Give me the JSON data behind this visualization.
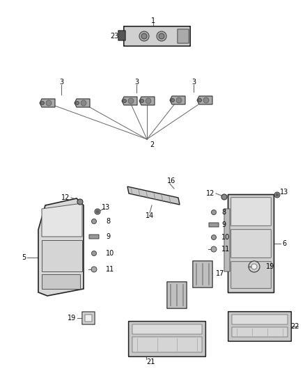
{
  "bg_color": "#ffffff",
  "fig_width": 4.38,
  "fig_height": 5.33,
  "dpi": 100,
  "lc": "#666666",
  "fs": 7.0
}
